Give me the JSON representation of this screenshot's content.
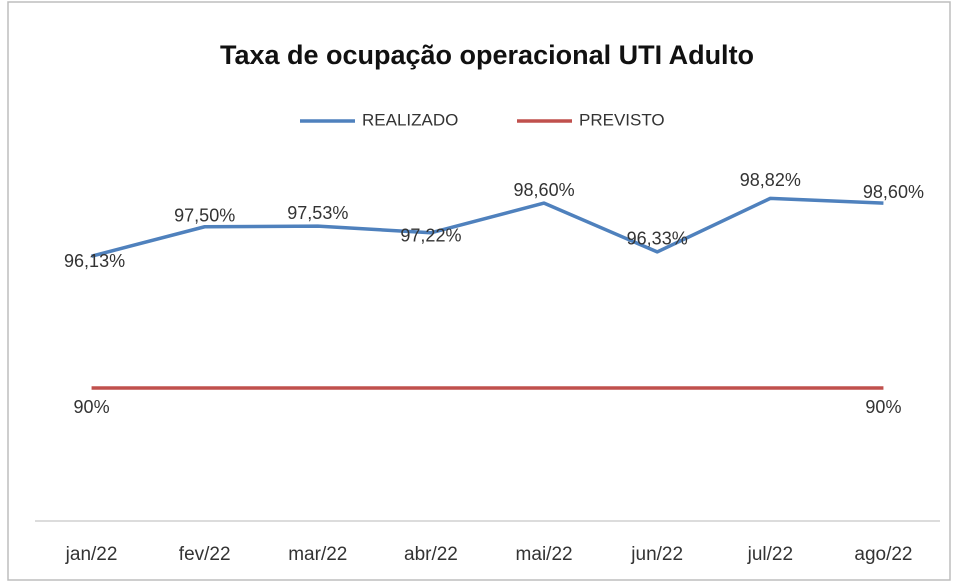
{
  "chart_data": {
    "type": "line",
    "title": "Taxa de ocupação operacional UTI Adulto",
    "categories": [
      "jan/22",
      "fev/22",
      "mar/22",
      "abr/22",
      "mai/22",
      "jun/22",
      "jul/22",
      "ago/22"
    ],
    "series": [
      {
        "name": "REALIZADO",
        "color": "#4f81bd",
        "values": [
          96.13,
          97.5,
          97.53,
          97.22,
          98.6,
          96.33,
          98.82,
          98.6
        ],
        "value_labels": [
          "96,13%",
          "97,50%",
          "97,53%",
          "97,22%",
          "98,60%",
          "96,33%",
          "98,82%",
          "98,60%"
        ]
      },
      {
        "name": "PREVISTO",
        "color": "#c0504d",
        "values": [
          90,
          90,
          90,
          90,
          90,
          90,
          90,
          90
        ],
        "value_labels": [
          "90%",
          null,
          null,
          null,
          null,
          null,
          null,
          "90%"
        ]
      }
    ],
    "ylim": [
      84,
      100
    ],
    "legend": "top",
    "grid": false
  }
}
